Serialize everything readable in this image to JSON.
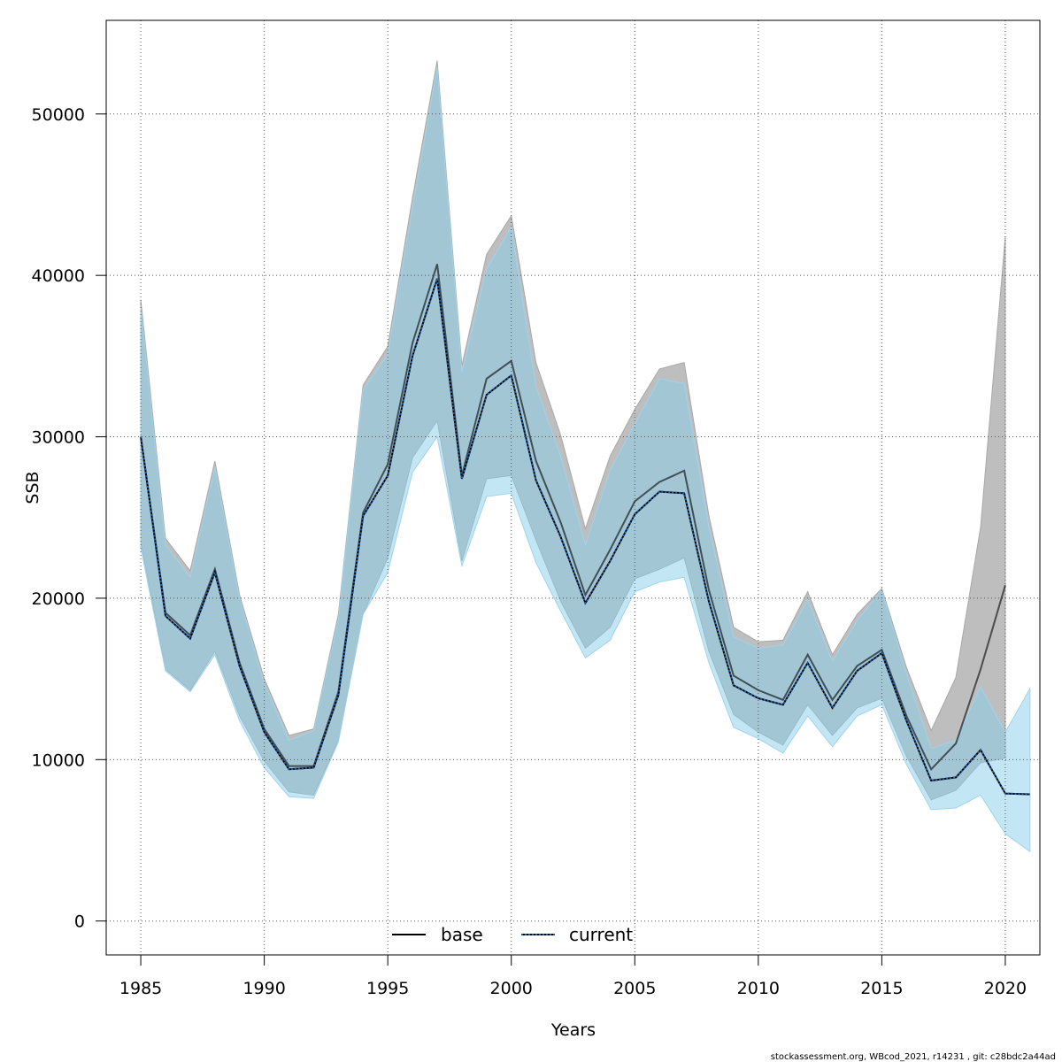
{
  "chart_data": {
    "type": "line",
    "xlabel": "Years",
    "ylabel": "SSB",
    "xlim": [
      1983.6,
      2021.4
    ],
    "ylim": [
      -2100,
      55800
    ],
    "x_ticks": [
      1985,
      1990,
      1995,
      2000,
      2005,
      2010,
      2015,
      2020
    ],
    "y_ticks": [
      0,
      10000,
      20000,
      30000,
      40000,
      50000
    ],
    "grid": true,
    "legend_position": "bottom-center",
    "series": [
      {
        "name": "base",
        "line_style": "solid",
        "line_color": "#000000",
        "band_color": "#bebebe",
        "x": [
          1985,
          1986,
          1987,
          1988,
          1989,
          1990,
          1991,
          1992,
          1993,
          1994,
          1995,
          1996,
          1997,
          1998,
          1999,
          2000,
          2001,
          2002,
          2003,
          2004,
          2005,
          2006,
          2007,
          2008,
          2009,
          2010,
          2011,
          2012,
          2013,
          2014,
          2015,
          2016,
          2017,
          2018,
          2019,
          2020
        ],
        "values": [
          30000,
          19100,
          17700,
          21800,
          16000,
          11900,
          9600,
          9600,
          14200,
          25300,
          28300,
          35800,
          40700,
          27600,
          33600,
          34700,
          28500,
          24700,
          20200,
          23000,
          26000,
          27200,
          27900,
          20500,
          15200,
          14300,
          13700,
          16500,
          13700,
          15800,
          16800,
          12700,
          9400,
          11000,
          15600,
          20800
        ],
        "upper": [
          38500,
          23700,
          21700,
          28500,
          20200,
          15000,
          11500,
          11900,
          19000,
          33200,
          35600,
          44800,
          53300,
          34400,
          41300,
          43700,
          34600,
          30100,
          24300,
          28800,
          31700,
          34200,
          34600,
          25100,
          18200,
          17300,
          17400,
          20400,
          16500,
          19000,
          20600,
          15700,
          11800,
          15100,
          24400,
          42400
        ],
        "lower": [
          23500,
          15600,
          14300,
          16700,
          12700,
          9900,
          8000,
          7800,
          11200,
          19000,
          22500,
          28700,
          31000,
          22300,
          27400,
          27600,
          23600,
          19800,
          16900,
          18200,
          21200,
          21800,
          22500,
          16700,
          12800,
          11700,
          10900,
          13400,
          11500,
          13200,
          13800,
          10200,
          7500,
          8100,
          9800,
          10100
        ]
      },
      {
        "name": "current",
        "line_style": "dotted",
        "line_color": "#1f4e8c",
        "band_color": "#87ceeb",
        "x": [
          1985,
          1986,
          1987,
          1988,
          1989,
          1990,
          1991,
          1992,
          1993,
          1994,
          1995,
          1996,
          1997,
          1998,
          1999,
          2000,
          2001,
          2002,
          2003,
          2004,
          2005,
          2006,
          2007,
          2008,
          2009,
          2010,
          2011,
          2012,
          2013,
          2014,
          2015,
          2016,
          2017,
          2018,
          2019,
          2020,
          2021
        ],
        "values": [
          30000,
          18900,
          17500,
          21600,
          15800,
          11700,
          9400,
          9500,
          14000,
          25100,
          27600,
          35000,
          39800,
          27400,
          32600,
          33800,
          27300,
          23800,
          19700,
          22300,
          25200,
          26600,
          26500,
          19800,
          14600,
          13800,
          13400,
          16000,
          13200,
          15500,
          16600,
          12400,
          8700,
          8900,
          10600,
          7900,
          7850
        ],
        "upper": [
          38000,
          23300,
          21300,
          28100,
          20000,
          14700,
          11200,
          11800,
          18700,
          32900,
          35100,
          44200,
          52900,
          34000,
          40400,
          43000,
          33100,
          28800,
          23300,
          27900,
          30800,
          33600,
          33300,
          24400,
          17600,
          16900,
          17100,
          19900,
          16100,
          18600,
          20500,
          15300,
          10700,
          11200,
          14500,
          11700,
          14400
        ],
        "lower": [
          23100,
          15500,
          14200,
          16500,
          12400,
          9500,
          7700,
          7600,
          11100,
          19000,
          21600,
          27800,
          30000,
          22000,
          26300,
          26500,
          22200,
          19200,
          16300,
          17400,
          20400,
          21000,
          21300,
          16000,
          12000,
          11300,
          10400,
          12700,
          10800,
          12700,
          13400,
          9700,
          6900,
          7000,
          7800,
          5400,
          4300
        ]
      }
    ]
  },
  "footer": "stockassessment.org, WBcod_2021, r14231 , git: c28bdc2a44ad"
}
